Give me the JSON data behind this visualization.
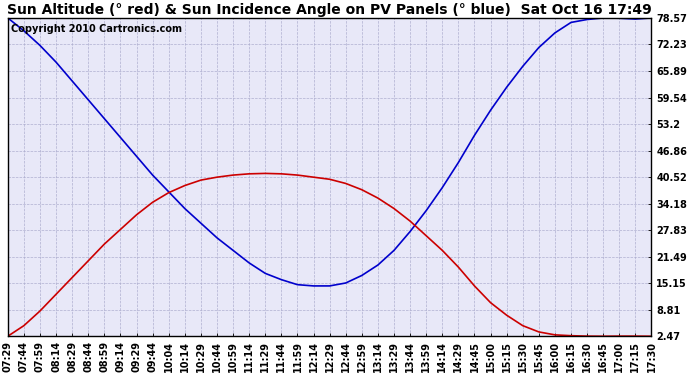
{
  "title": "Sun Altitude (° red) & Sun Incidence Angle on PV Panels (° blue)  Sat Oct 16 17:49",
  "copyright_text": "Copyright 2010 Cartronics.com",
  "yticks": [
    2.47,
    8.81,
    15.15,
    21.49,
    27.83,
    34.18,
    40.52,
    46.86,
    53.2,
    59.54,
    65.89,
    72.23,
    78.57
  ],
  "xtick_labels": [
    "07:29",
    "07:44",
    "07:59",
    "08:14",
    "08:29",
    "08:44",
    "08:59",
    "09:14",
    "09:29",
    "09:44",
    "10:04",
    "10:14",
    "10:29",
    "10:44",
    "10:59",
    "11:14",
    "11:29",
    "11:44",
    "11:59",
    "12:14",
    "12:29",
    "12:44",
    "12:59",
    "13:14",
    "13:29",
    "13:44",
    "13:59",
    "14:14",
    "14:29",
    "14:45",
    "15:00",
    "15:15",
    "15:30",
    "15:45",
    "16:00",
    "16:15",
    "16:30",
    "16:45",
    "17:00",
    "17:15",
    "17:30"
  ],
  "blue_y": [
    78.57,
    75.5,
    72.0,
    68.0,
    63.5,
    59.0,
    54.5,
    50.0,
    45.5,
    41.0,
    37.0,
    33.0,
    29.5,
    26.0,
    23.0,
    20.0,
    17.5,
    16.0,
    14.8,
    14.5,
    14.5,
    15.2,
    17.0,
    19.5,
    23.0,
    27.5,
    32.5,
    38.0,
    44.0,
    50.5,
    56.5,
    62.0,
    67.0,
    71.5,
    75.0,
    77.5,
    78.2,
    78.57,
    78.5,
    78.3,
    78.57
  ],
  "red_y": [
    2.47,
    5.0,
    8.5,
    12.5,
    16.5,
    20.5,
    24.5,
    28.0,
    31.5,
    34.5,
    36.8,
    38.5,
    39.8,
    40.5,
    41.0,
    41.3,
    41.4,
    41.3,
    41.0,
    40.5,
    40.0,
    39.0,
    37.5,
    35.5,
    33.0,
    30.0,
    26.5,
    23.0,
    19.0,
    14.5,
    10.5,
    7.5,
    5.0,
    3.5,
    2.8,
    2.6,
    2.5,
    2.47,
    2.5,
    2.5,
    2.47
  ],
  "blue_color": "#0000CC",
  "red_color": "#CC0000",
  "grid_color": "#AAAACC",
  "background_color": "#FFFFFF",
  "plot_bg_color": "#E8E8F8",
  "title_fontsize": 10,
  "tick_fontsize": 7,
  "copyright_fontsize": 7,
  "ymin": 2.47,
  "ymax": 78.57,
  "figwidth": 6.9,
  "figheight": 3.75,
  "dpi": 100
}
